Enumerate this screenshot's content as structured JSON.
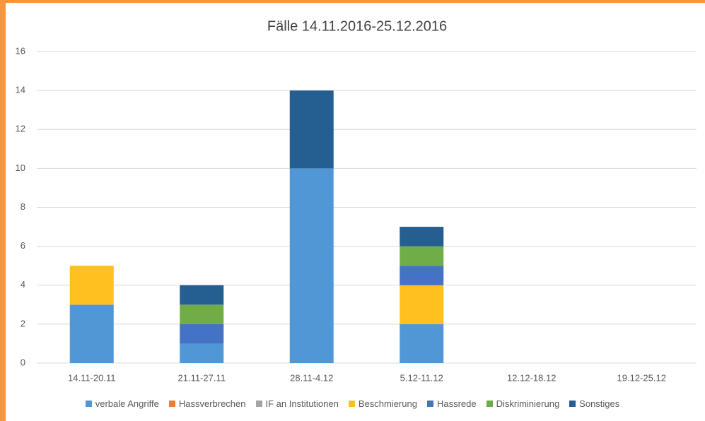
{
  "chart_data": {
    "type": "stacked_bar",
    "title": "Fälle 14.11.2016-25.12.2016",
    "categories": [
      "14.11-20.11",
      "21.11-27.11",
      "28.11-4.12",
      "5.12-11.12",
      "12.12-18.12",
      "19.12-25.12"
    ],
    "series": [
      {
        "name": "verbale Angriffe",
        "color": "#5197d5",
        "values": [
          3,
          1,
          10,
          2,
          0,
          0
        ]
      },
      {
        "name": "Hassverbrechen",
        "color": "#ed7d31",
        "values": [
          0,
          0,
          0,
          0,
          0,
          0
        ]
      },
      {
        "name": "IF an Institutionen",
        "color": "#a5a5a5",
        "values": [
          0,
          0,
          0,
          0,
          0,
          0
        ]
      },
      {
        "name": "Beschmierung",
        "color": "#ffc020",
        "values": [
          2,
          0,
          0,
          2,
          0,
          0
        ]
      },
      {
        "name": "Hassrede",
        "color": "#4472c4",
        "values": [
          0,
          1,
          0,
          1,
          0,
          0
        ]
      },
      {
        "name": "Diskriminierung",
        "color": "#70ad47",
        "values": [
          0,
          1,
          0,
          1,
          0,
          0
        ]
      },
      {
        "name": "Sonstiges",
        "color": "#255e91",
        "values": [
          0,
          1,
          4,
          1,
          0,
          0
        ]
      }
    ],
    "ylim": [
      0,
      16
    ],
    "yticks": [
      0,
      2,
      4,
      6,
      8,
      10,
      12,
      14,
      16
    ],
    "grid": true,
    "legend": "bottom"
  }
}
